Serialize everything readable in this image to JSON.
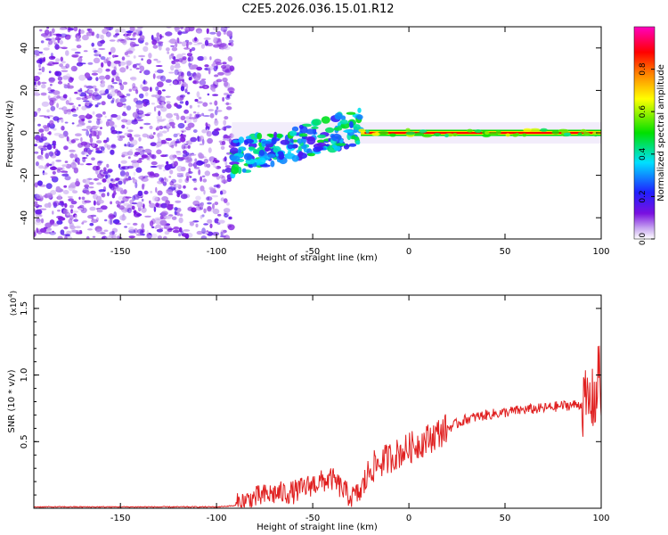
{
  "figure_title": "C2E5.2026.036.15.01.R12",
  "chart_data": [
    {
      "type": "heatmap",
      "panel": "spectrogram",
      "xlabel": "Height of straight line (km)",
      "ylabel": "Frequency (Hz)",
      "xlim": [
        -195,
        100
      ],
      "ylim": [
        -50,
        50
      ],
      "xticks": [
        -150,
        -100,
        -50,
        0,
        50,
        100
      ],
      "yticks": [
        -40,
        -20,
        0,
        20,
        40
      ],
      "colorbar": {
        "label": "Normalized spectral amplitude",
        "range": [
          0,
          1
        ],
        "ticks": [
          0.0,
          0.2,
          0.4,
          0.6,
          0.8
        ],
        "tick_labels": [
          "0.0",
          "0.2",
          "0.4",
          "0.6",
          "0.8"
        ],
        "colormap": [
          "#ffffff",
          "#7a10e0",
          "#2020ff",
          "#00e0ff",
          "#00e000",
          "#ffff00",
          "#ff8000",
          "#ff0000",
          "#ff00c0"
        ]
      },
      "regions": [
        {
          "name": "noise",
          "x_range": [
            -195,
            -92
          ],
          "freq_range": [
            -50,
            50
          ],
          "amplitude": 0.15
        },
        {
          "name": "wandering signal",
          "x_range": [
            -92,
            -25
          ],
          "center_freq_start": -12,
          "center_freq_end": 3,
          "amplitude": 0.45
        },
        {
          "name": "stable carrier",
          "x_range": [
            -25,
            100
          ],
          "center_freq": 0,
          "amplitude": 0.95
        }
      ]
    },
    {
      "type": "line",
      "panel": "snr",
      "xlabel": "Height of straight line (km)",
      "ylabel": "SNR (10 * v/v)",
      "y_multiplier": "(x10^4)",
      "multiplier_base": "(x10",
      "multiplier_exp": "4",
      "multiplier_close": ")",
      "xlim": [
        -195,
        100
      ],
      "ylim": [
        0,
        1.6
      ],
      "xticks": [
        -150,
        -100,
        -50,
        0,
        50,
        100
      ],
      "yticks": [
        0.5,
        1.0,
        1.5
      ],
      "ytick_labels": [
        "0.5",
        "1.0",
        "1.5"
      ],
      "color": "#e02020",
      "series": [
        {
          "name": "SNR",
          "x": [
            -195,
            -150,
            -100,
            -90,
            -80,
            -70,
            -60,
            -50,
            -40,
            -35,
            -30,
            -25,
            -20,
            -10,
            0,
            10,
            20,
            30,
            40,
            50,
            60,
            70,
            80,
            90,
            95,
            98,
            99,
            100
          ],
          "y": [
            0.01,
            0.01,
            0.01,
            0.02,
            0.08,
            0.11,
            0.12,
            0.18,
            0.22,
            0.15,
            0.08,
            0.12,
            0.3,
            0.38,
            0.45,
            0.52,
            0.6,
            0.67,
            0.7,
            0.72,
            0.74,
            0.75,
            0.77,
            0.78,
            0.8,
            0.85,
            1.2,
            0.7
          ]
        }
      ]
    }
  ]
}
